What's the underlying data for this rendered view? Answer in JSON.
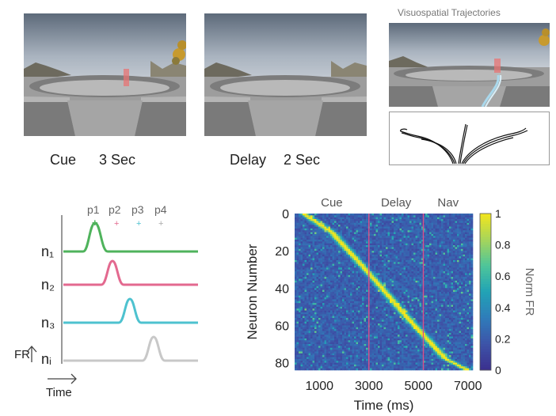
{
  "panels": [
    {
      "caption_label": "Cue",
      "caption_duration": "3 Sec"
    },
    {
      "caption_label": "Delay",
      "caption_duration": "2 Sec"
    }
  ],
  "trajectories": {
    "title": "Visuospatial Trajectories"
  },
  "tuning": {
    "peaks": [
      "p1",
      "p2",
      "p3",
      "p4"
    ],
    "neurons": [
      "n₁",
      "n₂",
      "n₃",
      "nᵢ"
    ],
    "colors": [
      "#4fb35c",
      "#e3698f",
      "#4ec2cf",
      "#c8c8c8"
    ],
    "ylabel": "FR",
    "xlabel": "Time"
  },
  "chart_data": {
    "type": "heatmap",
    "xlabel": "Time (ms)",
    "ylabel": "Neuron Number",
    "xticks": [
      1000,
      3000,
      5000,
      7000
    ],
    "yticks": [
      0,
      20,
      40,
      60,
      80
    ],
    "xlim": [
      0,
      7200
    ],
    "ylim": [
      0,
      84
    ],
    "epochs": [
      "Cue",
      "Delay",
      "Nav"
    ],
    "epoch_boundaries_ms": [
      3000,
      5200
    ],
    "colorbar": {
      "label": "Norm FR",
      "ticks": [
        0,
        0.2,
        0.4,
        0.6,
        0.8,
        1
      ],
      "range": [
        0,
        1
      ]
    },
    "peak_trajectory": {
      "time_ms": [
        350,
        1500,
        3000,
        4500,
        6100,
        7000
      ],
      "neuron": [
        0,
        10,
        32,
        55,
        78,
        84
      ]
    },
    "colormap": [
      "#3b2f8e",
      "#3d54a8",
      "#2f7cba",
      "#21a3b5",
      "#4ec59a",
      "#a7d55a",
      "#f4e61c"
    ]
  }
}
